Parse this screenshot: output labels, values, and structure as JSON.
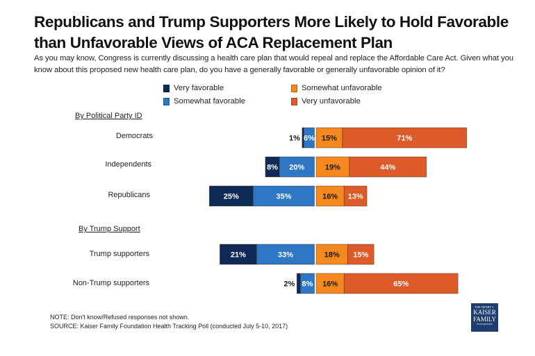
{
  "header": {
    "title": "Republicans and Trump Supporters More Likely to Hold Favorable than Unfavorable Views of ACA Replacement Plan",
    "subtitle": "As you may know, Congress is currently discussing a health care plan that would repeal and replace the Affordable Care Act. Given what you know about this proposed new health care plan, do you have a generally favorable or generally unfavorable opinion of it?"
  },
  "footer": {
    "note": "NOTE: Don't know/Refused responses not shown.",
    "source": "SOURCE: Kaiser Family Foundation Health Tracking Poll (conducted July 5-10, 2017)",
    "logo": {
      "line1": "THE HENRY J.",
      "line2": "KAISER",
      "line3": "FAMILY",
      "line4": "FOUNDATION"
    }
  },
  "chart_data": {
    "type": "bar",
    "orientation": "horizontal-diverging",
    "title": "Republicans and Trump Supporters More Likely to Hold Favorable than Unfavorable Views of ACA Replacement Plan",
    "xlabel": "",
    "ylabel": "",
    "grid": false,
    "legend_position": "top",
    "legend": [
      {
        "name": "Very favorable",
        "color": "#0f2a56"
      },
      {
        "name": "Somewhat favorable",
        "color": "#2d77c5"
      },
      {
        "name": "Somewhat unfavorable",
        "color": "#f5891f"
      },
      {
        "name": "Very unfavorable",
        "color": "#dd5b28"
      }
    ],
    "sections": [
      {
        "label": "By Political Party ID",
        "categories": [
          "Democrats",
          "Independents",
          "Republicans"
        ]
      },
      {
        "label": "By Trump Support",
        "categories": [
          "Trump supporters",
          "Non-Trump supporters"
        ]
      }
    ],
    "categories": [
      "Democrats",
      "Independents",
      "Republicans",
      "Trump supporters",
      "Non-Trump supporters"
    ],
    "series": [
      {
        "name": "Very favorable",
        "side": "favorable",
        "values": [
          1,
          8,
          25,
          21,
          2
        ]
      },
      {
        "name": "Somewhat favorable",
        "side": "favorable",
        "values": [
          6,
          20,
          35,
          33,
          8
        ]
      },
      {
        "name": "Somewhat unfavorable",
        "side": "unfavorable",
        "values": [
          15,
          19,
          16,
          18,
          16
        ]
      },
      {
        "name": "Very unfavorable",
        "side": "unfavorable",
        "values": [
          71,
          44,
          13,
          15,
          65
        ]
      }
    ],
    "data_labels": [
      [
        "1%",
        "6%",
        "15%",
        "71%"
      ],
      [
        "8%",
        "20%",
        "19%",
        "44%"
      ],
      [
        "25%",
        "35%",
        "16%",
        "13%"
      ],
      [
        "21%",
        "33%",
        "18%",
        "15%"
      ],
      [
        "2%",
        "8%",
        "16%",
        "65%"
      ]
    ],
    "label_colors": {
      "dark_text": "#1a1a1a",
      "light_text": "#ffffff"
    }
  }
}
